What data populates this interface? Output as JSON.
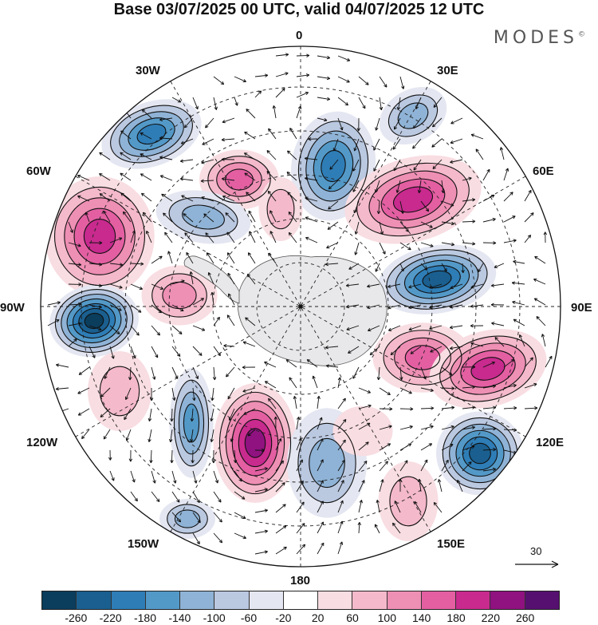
{
  "title": "Base 03/07/2025 00 UTC, valid 04/07/2025 12 UTC",
  "brand": "MODES",
  "brand_mark": "©",
  "longitude_labels": {
    "n0": "0",
    "e30": "30E",
    "e60": "60E",
    "e90": "90E",
    "e120": "120E",
    "e150": "150E",
    "s180": "180",
    "w150": "150W",
    "w120": "120W",
    "w90": "90W",
    "w60": "60W",
    "w30": "30W"
  },
  "reference_vector_label": "30",
  "colorbar": {
    "ticks": [
      "-260",
      "-220",
      "-180",
      "-140",
      "-100",
      "-60",
      "-20",
      "20",
      "60",
      "100",
      "140",
      "180",
      "220",
      "260"
    ],
    "colors": [
      "#0b3d5c",
      "#1a5f8f",
      "#2e7db6",
      "#5399c8",
      "#8fb3d6",
      "#bac8e0",
      "#e4e6f1",
      "#ffffff",
      "#f8dde2",
      "#f4b9cb",
      "#ee8fb4",
      "#e35fa2",
      "#c82a8e",
      "#8f1280",
      "#561070"
    ]
  },
  "anomalies": [
    {
      "sign": -1,
      "level": 5,
      "name": "low-30w"
    },
    {
      "sign": -1,
      "level": 3,
      "name": "low-30e"
    },
    {
      "sign": -1,
      "level": 5,
      "name": "low-near-0"
    },
    {
      "sign": 1,
      "level": 4,
      "name": "high-north-center"
    },
    {
      "sign": 1,
      "level": 2,
      "name": "high-near-0"
    },
    {
      "sign": 1,
      "level": 5,
      "name": "high-60e"
    },
    {
      "sign": 1,
      "level": 5,
      "name": "high-60w"
    },
    {
      "sign": -1,
      "level": 3,
      "name": "low-west-center"
    },
    {
      "sign": -1,
      "level": 7,
      "name": "low-90w"
    },
    {
      "sign": 1,
      "level": 3,
      "name": "high-west-center"
    },
    {
      "sign": -1,
      "level": 6,
      "name": "low-80e"
    },
    {
      "sign": 1,
      "level": 4,
      "name": "high-east-center"
    },
    {
      "sign": 1,
      "level": 5,
      "name": "high-100e"
    },
    {
      "sign": 1,
      "level": 6,
      "name": "high-south-center"
    },
    {
      "sign": -1,
      "level": 4,
      "name": "low-south-west"
    },
    {
      "sign": -1,
      "level": 3,
      "name": "low-south-center"
    },
    {
      "sign": -1,
      "level": 6,
      "name": "low-120e"
    },
    {
      "sign": -1,
      "level": 3,
      "name": "low-160w"
    },
    {
      "sign": 1,
      "level": 2,
      "name": "high-150e"
    },
    {
      "sign": 1,
      "level": 2,
      "name": "high-south-west"
    },
    {
      "sign": 1,
      "level": 1,
      "name": "high-160e"
    }
  ]
}
